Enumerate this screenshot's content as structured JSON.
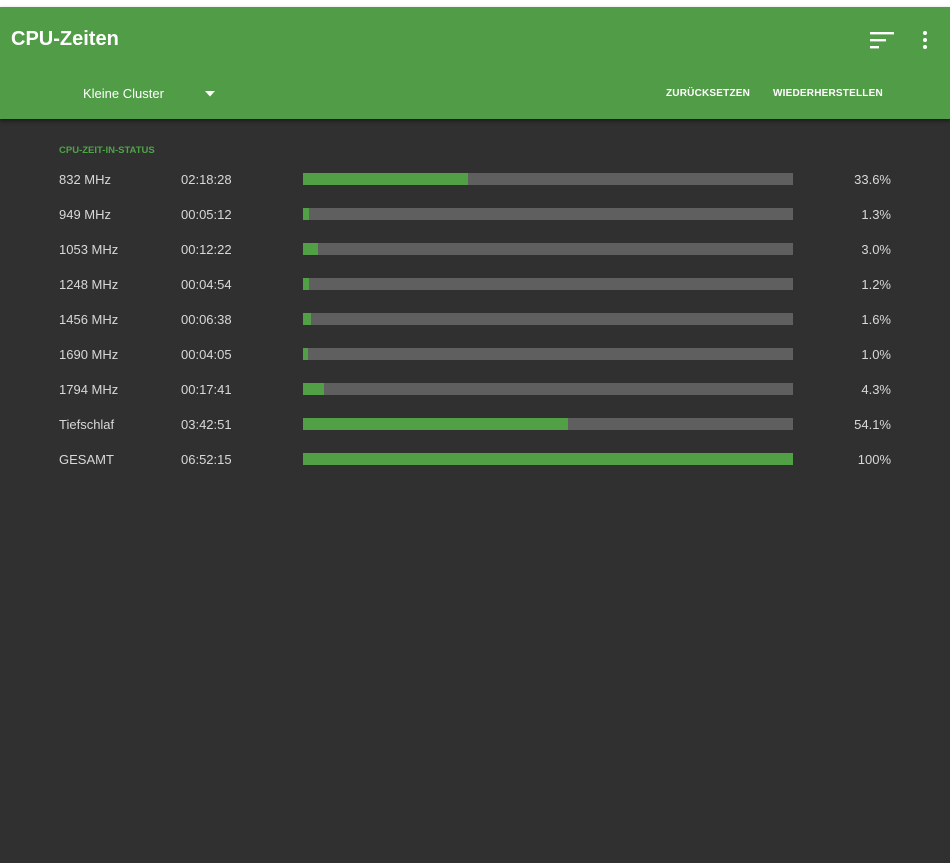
{
  "app": {
    "title": "CPU-Zeiten",
    "accent": "#519c46",
    "background": "#303030"
  },
  "toolbar": {
    "cluster_selected": "Kleine Cluster",
    "reset_label": "ZURÜCKSETZEN",
    "restore_label": "WIEDERHERSTELLEN",
    "icons": [
      "sort-icon",
      "more-vert-icon",
      "dropdown-arrow-icon"
    ]
  },
  "section": {
    "title": "CPU-ZEIT-IN-STATUS"
  },
  "states": [
    {
      "label": "832 MHz",
      "time": "02:18:28",
      "percent_text": "33.6%",
      "percent": 33.6
    },
    {
      "label": "949 MHz",
      "time": "00:05:12",
      "percent_text": "1.3%",
      "percent": 1.3
    },
    {
      "label": "1053 MHz",
      "time": "00:12:22",
      "percent_text": "3.0%",
      "percent": 3.0
    },
    {
      "label": "1248 MHz",
      "time": "00:04:54",
      "percent_text": "1.2%",
      "percent": 1.2
    },
    {
      "label": "1456 MHz",
      "time": "00:06:38",
      "percent_text": "1.6%",
      "percent": 1.6
    },
    {
      "label": "1690 MHz",
      "time": "00:04:05",
      "percent_text": "1.0%",
      "percent": 1.0
    },
    {
      "label": "1794 MHz",
      "time": "00:17:41",
      "percent_text": "4.3%",
      "percent": 4.3
    },
    {
      "label": "Tiefschlaf",
      "time": "03:42:51",
      "percent_text": "54.1%",
      "percent": 54.1
    },
    {
      "label": "GESAMT",
      "time": "06:52:15",
      "percent_text": "100%",
      "percent": 100
    }
  ]
}
